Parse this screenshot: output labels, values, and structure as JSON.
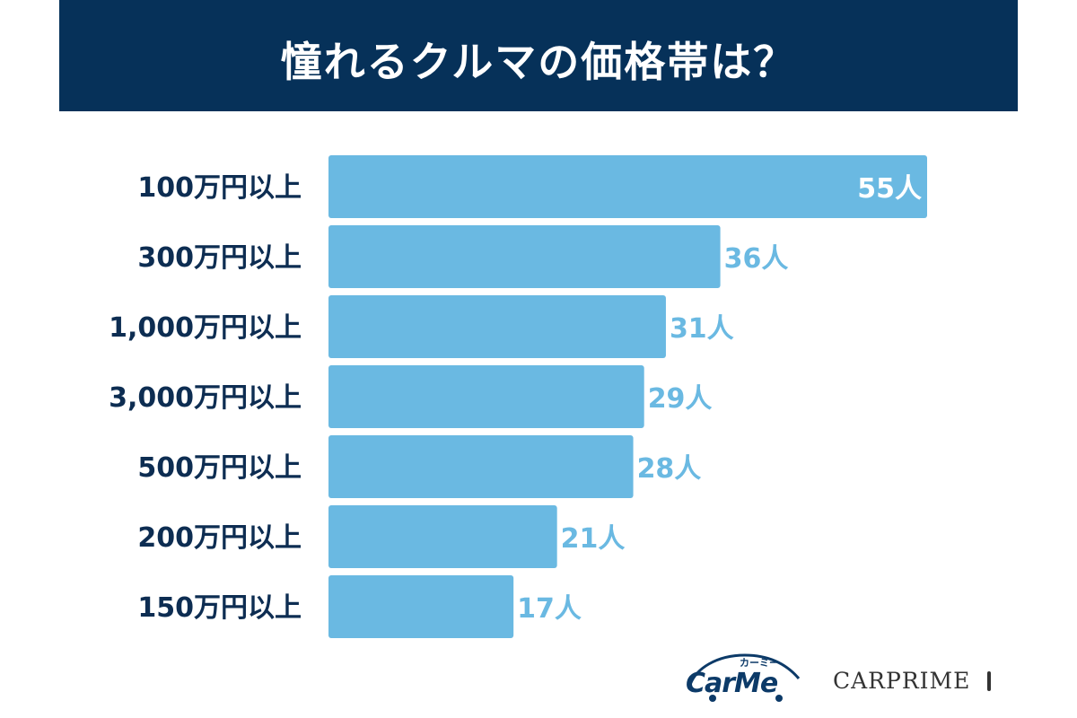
{
  "chart_data": {
    "type": "bar",
    "orientation": "horizontal",
    "title": "憧れるクルマの価格帯は？",
    "categories": [
      "100万円以上",
      "300万円以上",
      "1,000万円以上",
      "3,000万円以上",
      "500万円以上",
      "200万円以上",
      "150万円以上"
    ],
    "values": [
      55,
      36,
      31,
      29,
      28,
      21,
      17
    ],
    "value_labels": [
      "55人",
      "36人",
      "31人",
      "29人",
      "28人",
      "21人",
      "17人"
    ],
    "xlim": [
      0,
      55
    ],
    "grid": false,
    "legend": "none",
    "colors": {
      "bar": "#6ab9e2",
      "label_inside": "#ffffff",
      "label_outside": "#6ab9e2",
      "category_text": "#0d2d52",
      "title_band": "#063159"
    }
  },
  "logos": {
    "carme_word": "CarMe",
    "carme_kana": "カーミー",
    "carprime_word": "CARPRIME"
  }
}
